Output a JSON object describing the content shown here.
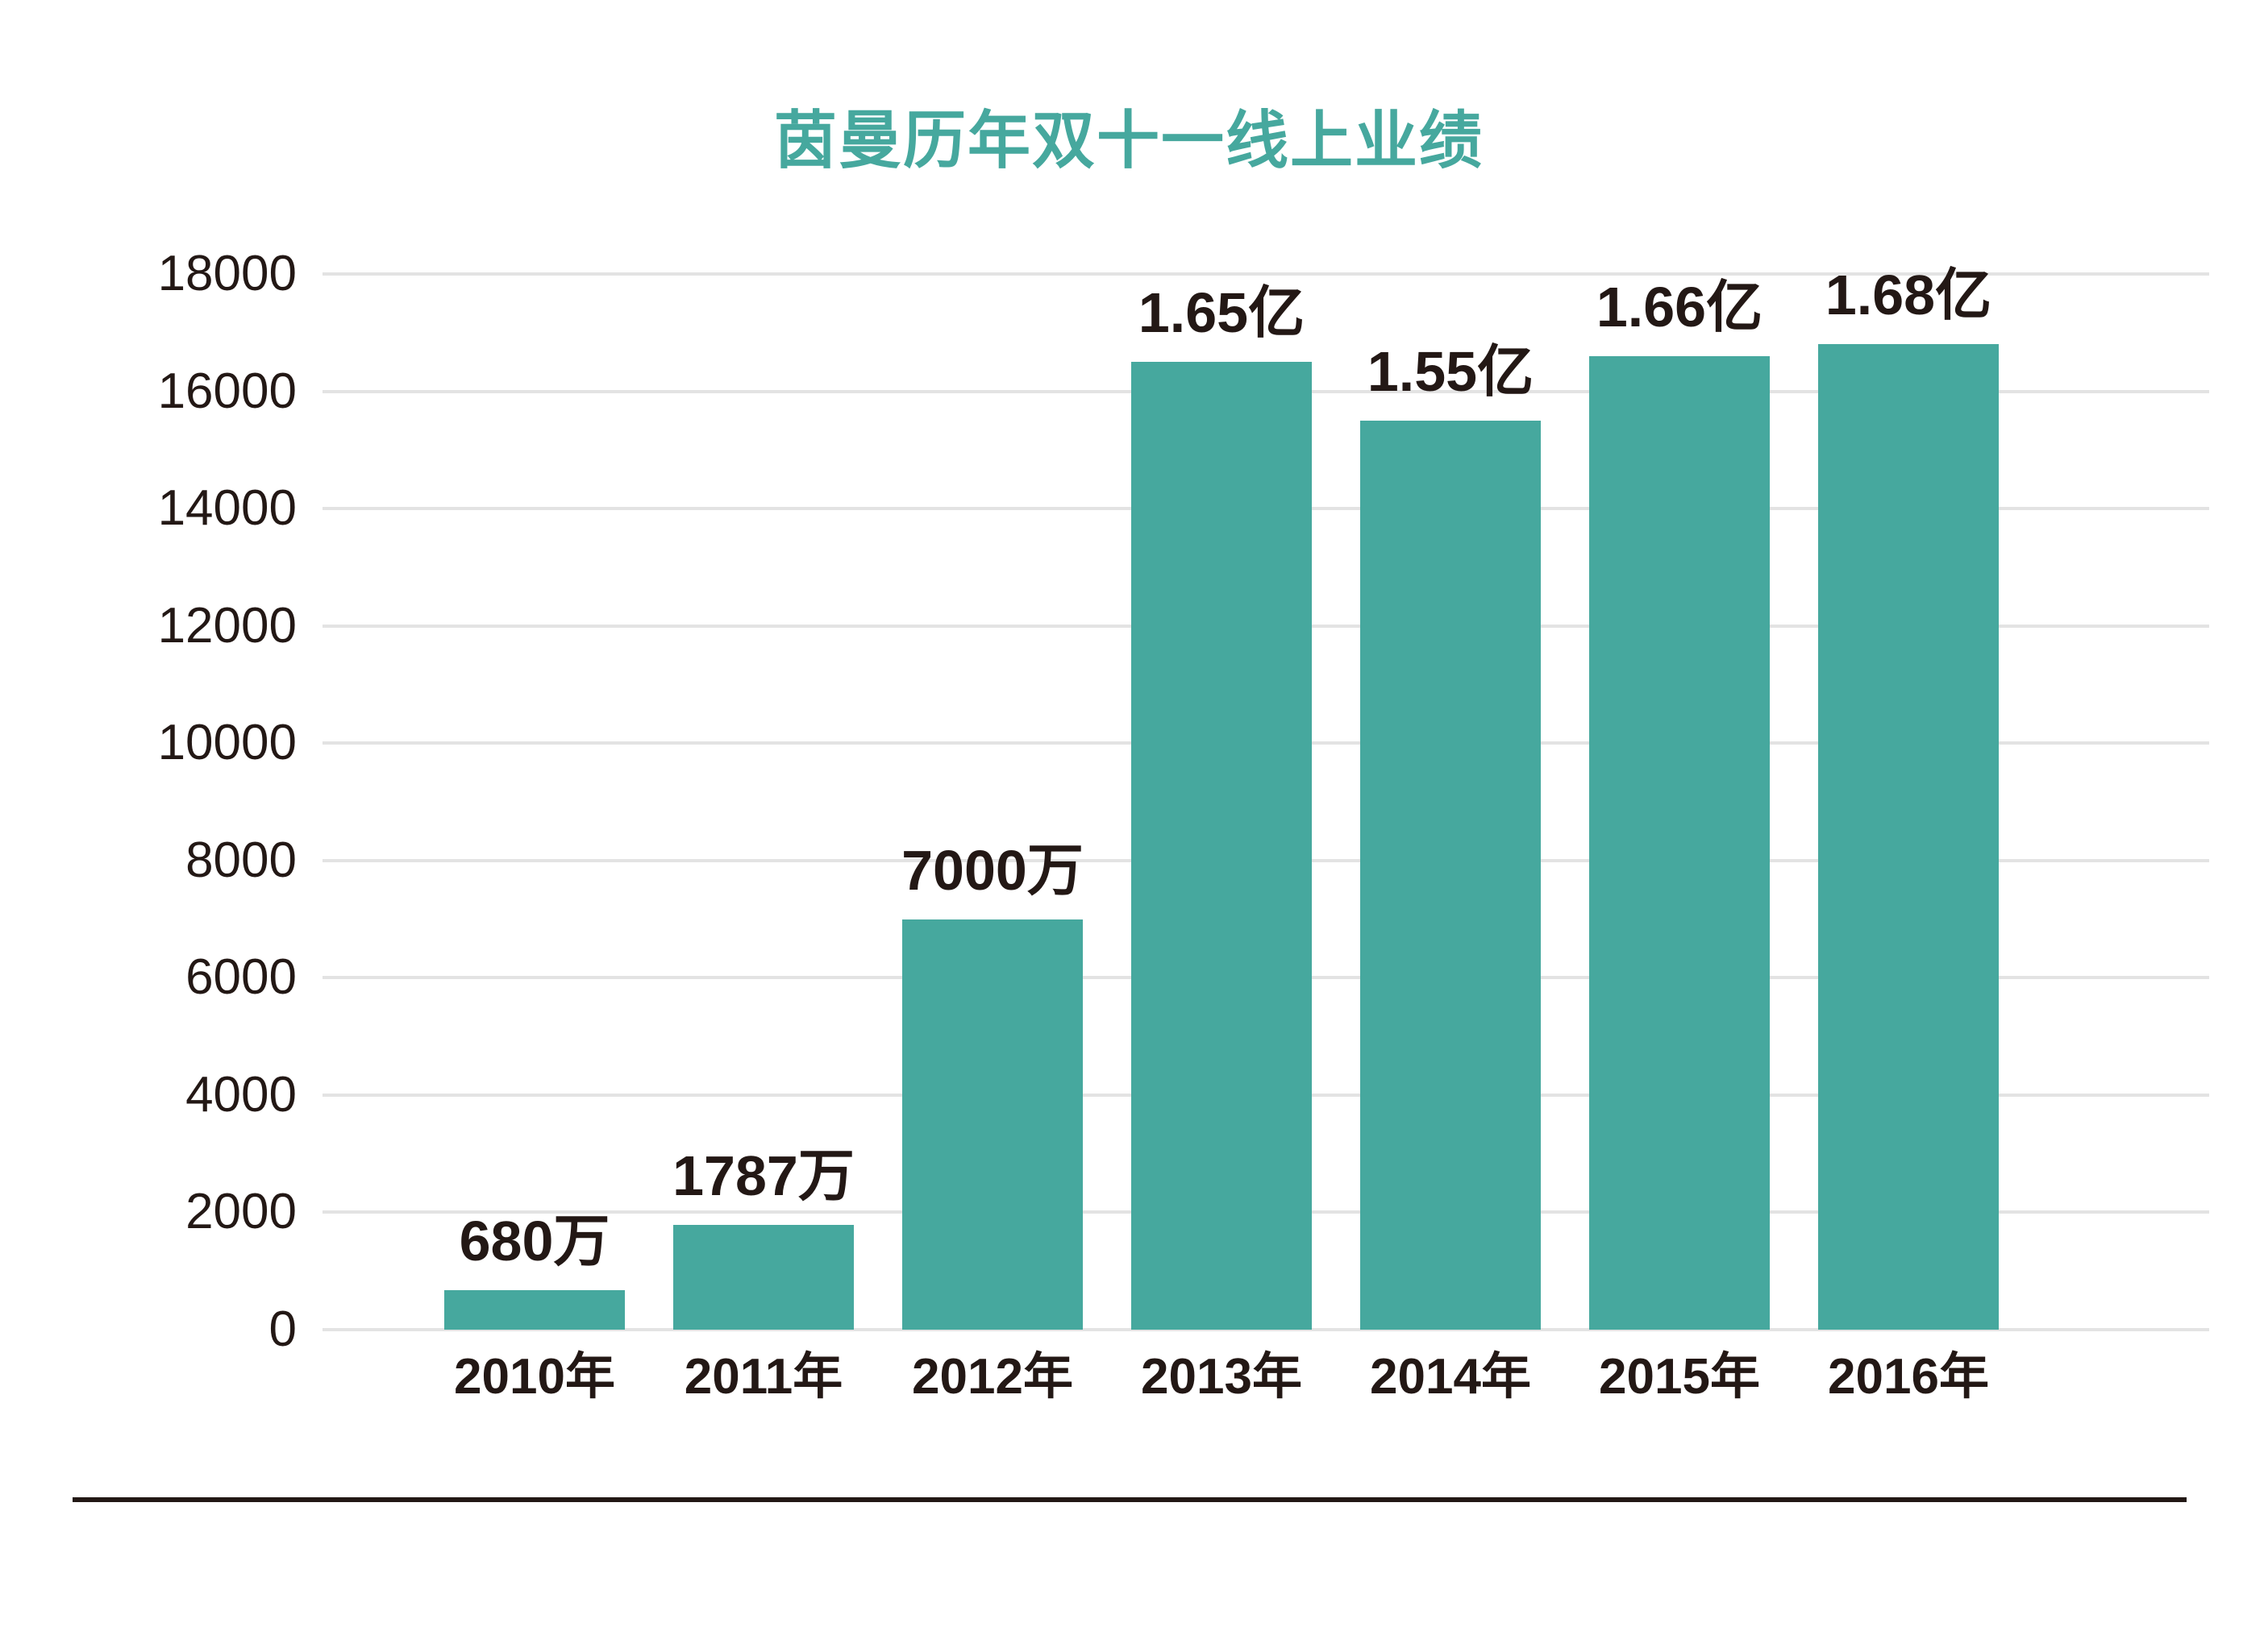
{
  "title": "茵曼历年双十一线上业绩",
  "colors": {
    "bar": "#46A89E",
    "title": "#46A89E",
    "text": "#231815",
    "gridline": "#E3E3E3",
    "divider": "#231815",
    "background": "#FFFFFF"
  },
  "chart_data": {
    "type": "bar",
    "title": "茵曼历年双十一线上业绩",
    "categories": [
      "2010年",
      "2011年",
      "2012年",
      "2013年",
      "2014年",
      "2015年",
      "2016年"
    ],
    "values": [
      680,
      1787,
      7000,
      16500,
      15500,
      16600,
      16800
    ],
    "bar_labels": [
      "680万",
      "1787万",
      "7000万",
      "1.65亿",
      "1.55亿",
      "1.66亿",
      "1.68亿"
    ],
    "unit": "万",
    "xlabel": "",
    "ylabel": "",
    "ylim": [
      0,
      18000
    ],
    "yticks": [
      0,
      2000,
      4000,
      6000,
      8000,
      10000,
      12000,
      14000,
      16000,
      18000
    ],
    "ytick_labels": [
      "0",
      "2000",
      "4000",
      "6000",
      "8000",
      "10000",
      "12000",
      "14000",
      "16000",
      "18000"
    ],
    "grid": "horizontal",
    "legend": "none"
  }
}
